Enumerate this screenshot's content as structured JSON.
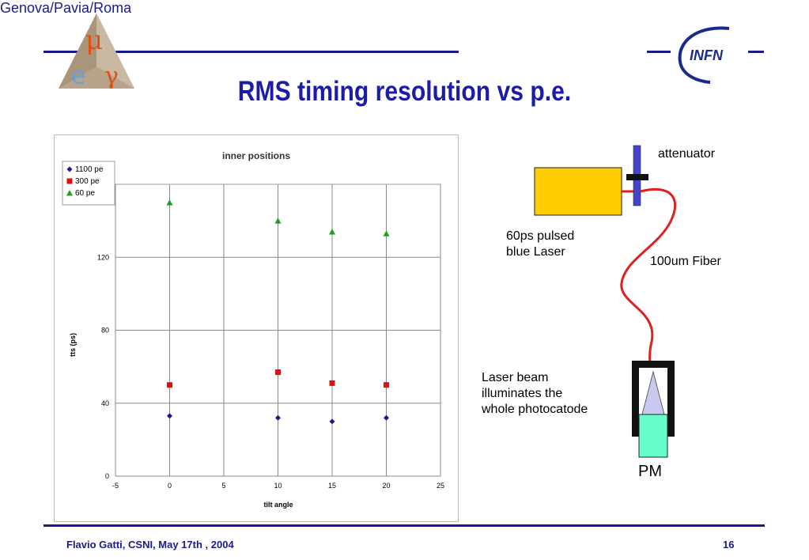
{
  "header": {
    "org": "Genova/Pavia/Roma",
    "logo_left_letters": [
      "μ",
      "e",
      "γ"
    ],
    "logo_right_text": "INFN"
  },
  "slide": {
    "title": "RMS timing resolution vs p.e.",
    "footer_left": "Flavio Gatti, CSNI, May 17th , 2004",
    "page_number": "16"
  },
  "diagram": {
    "attenuator": "attenuator",
    "laser": "60ps pulsed\nblue Laser",
    "fiber": "100um Fiber",
    "beam": "Laser beam\nilluminates the\nwhole photocatode",
    "pm": "PM",
    "colors": {
      "laser": "#ffcc00",
      "fiber": "#e02020",
      "pm": "#66ffcc",
      "cone": "#c8c8f0"
    }
  },
  "chart_data": {
    "type": "scatter",
    "title": "inner positions",
    "xlabel": "tilt angle",
    "ylabel": "tts (ps)",
    "xlim": [
      -5,
      25
    ],
    "ylim": [
      0,
      160
    ],
    "xticks": [
      -5,
      0,
      5,
      10,
      15,
      20,
      25
    ],
    "yticks": [
      0,
      40,
      80,
      120
    ],
    "grid": true,
    "legend_position": "top-left",
    "series": [
      {
        "name": "1100 pe",
        "marker": "diamond",
        "color": "#1a1a8c",
        "points": [
          [
            0,
            33
          ],
          [
            10,
            32
          ],
          [
            15,
            30
          ],
          [
            20,
            32
          ]
        ]
      },
      {
        "name": "300 pe",
        "marker": "square",
        "color": "#e01010",
        "points": [
          [
            0,
            50
          ],
          [
            10,
            57
          ],
          [
            15,
            51
          ],
          [
            20,
            50
          ]
        ]
      },
      {
        "name": "60 pe",
        "marker": "triangle",
        "color": "#20a020",
        "points": [
          [
            0,
            150
          ],
          [
            10,
            140
          ],
          [
            15,
            134
          ],
          [
            20,
            133
          ]
        ]
      }
    ]
  }
}
